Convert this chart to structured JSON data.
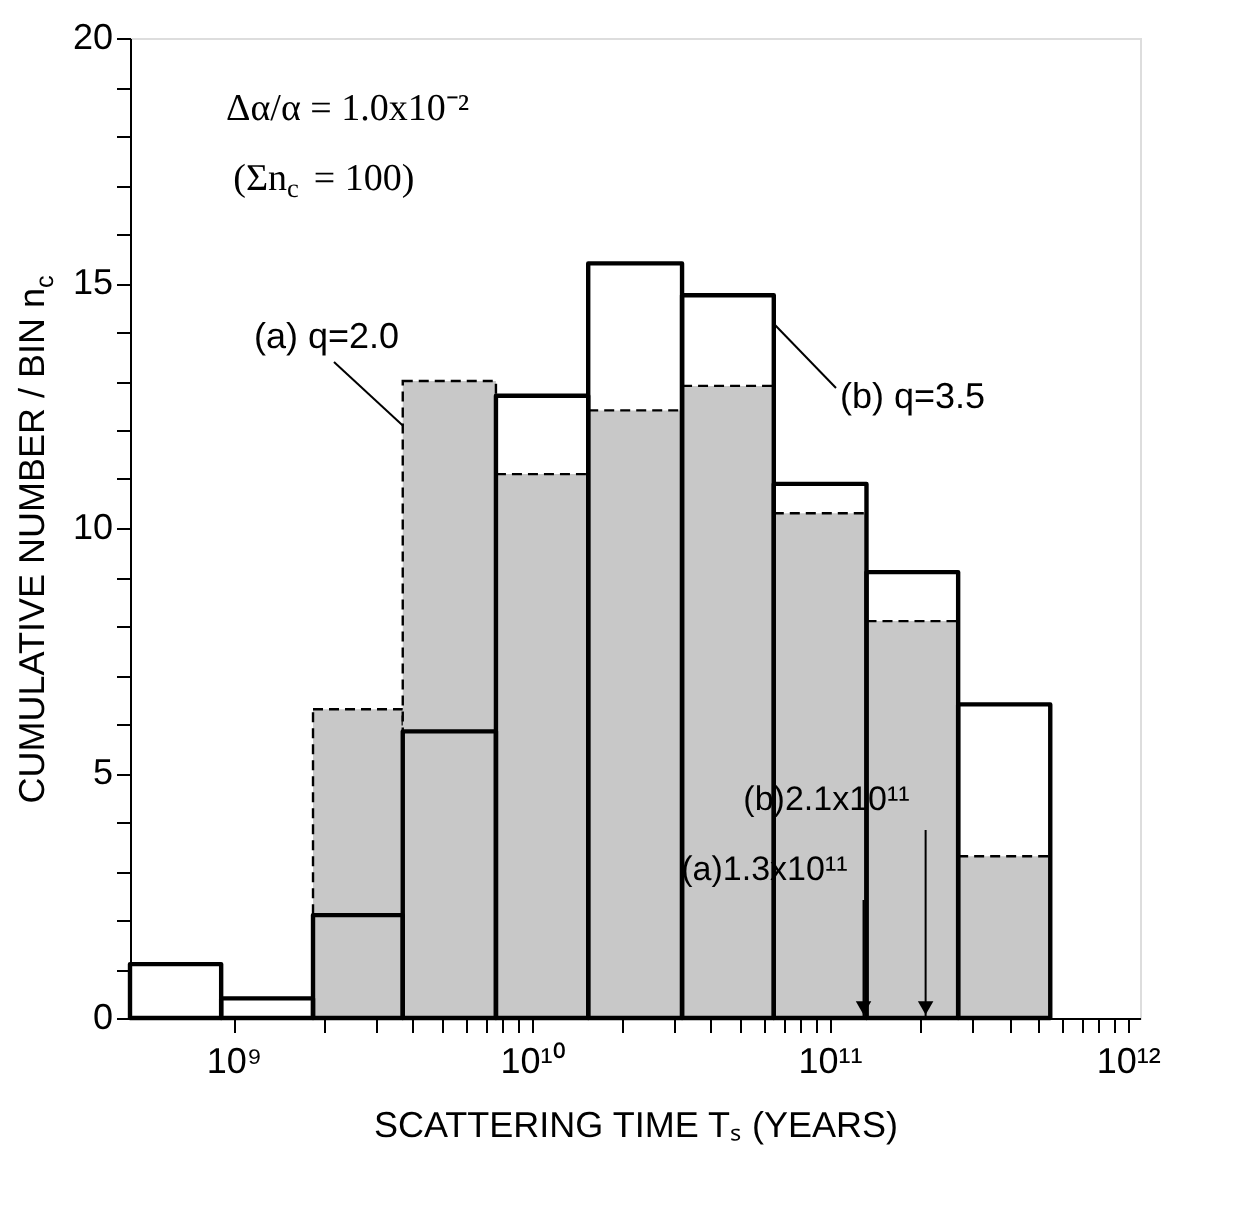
{
  "chart_data": {
    "type": "histogram",
    "xlabel": "SCATTERING TIME  Tₛ (YEARS)",
    "ylabel": "CUMULATIVE NUMBER / BIN n$_{c}$",
    "bins": [
      450000000.0,
      910000000.0,
      1850000000.0,
      3700000000.0,
      7600000000.0,
      15500000000.0,
      32000000000.0,
      65000000000.0,
      133000000000.0,
      270000000000.0,
      550000000000.0
    ],
    "series": [
      {
        "name": "(a) q=2.0",
        "color": "#c8c8c8",
        "line_style": "dashed",
        "values": [
          null,
          null,
          6.3,
          13.0,
          11.1,
          12.4,
          12.9,
          10.3,
          8.1,
          3.3
        ]
      },
      {
        "name": "(b) q=3.5",
        "color": "#000000",
        "line_style": "solid",
        "values": [
          1.1,
          0.4,
          2.1,
          5.85,
          12.7,
          15.4,
          14.75,
          10.9,
          9.1,
          6.4
        ]
      }
    ],
    "xlim": [
      450000000.0,
      1100000000000.0
    ],
    "ylim": [
      0,
      20
    ],
    "log": "x",
    "xticks": [
      {
        "value": 1000000000.0,
        "label": "10⁹"
      },
      {
        "value": 2000000000.0,
        "label": null
      },
      {
        "value": 3000000000.0,
        "label": null
      },
      {
        "value": 4000000000.0,
        "label": null
      },
      {
        "value": 5000000000.0,
        "label": null
      },
      {
        "value": 6000000000.0,
        "label": null
      },
      {
        "value": 7000000000.0,
        "label": null
      },
      {
        "value": 8000000000.0,
        "label": null
      },
      {
        "value": 9000000000.0,
        "label": null
      },
      {
        "value": 10000000000.0,
        "label": "10¹⁰"
      },
      {
        "value": 20000000000.0,
        "label": null
      },
      {
        "value": 30000000000.0,
        "label": null
      },
      {
        "value": 40000000000.0,
        "label": null
      },
      {
        "value": 50000000000.0,
        "label": null
      },
      {
        "value": 60000000000.0,
        "label": null
      },
      {
        "value": 70000000000.0,
        "label": null
      },
      {
        "value": 80000000000.0,
        "label": null
      },
      {
        "value": 90000000000.0,
        "label": null
      },
      {
        "value": 100000000000.0,
        "label": "10¹¹"
      },
      {
        "value": 200000000000.0,
        "label": null
      },
      {
        "value": 300000000000.0,
        "label": null
      },
      {
        "value": 400000000000.0,
        "label": null
      },
      {
        "value": 500000000000.0,
        "label": null
      },
      {
        "value": 600000000000.0,
        "label": null
      },
      {
        "value": 700000000000.0,
        "label": null
      },
      {
        "value": 800000000000.0,
        "label": null
      },
      {
        "value": 900000000000.0,
        "label": null
      },
      {
        "value": 1000000000000.0,
        "label": "10¹²"
      }
    ],
    "yticks": [
      0,
      {
        "value": 1,
        "label": null
      },
      {
        "value": 2,
        "label": null
      },
      {
        "value": 3,
        "label": null
      },
      {
        "value": 4,
        "label": null
      },
      5,
      {
        "value": 6,
        "label": null
      },
      {
        "value": 7,
        "label": null
      },
      {
        "value": 8,
        "label": null
      },
      {
        "value": 9,
        "label": null
      },
      10,
      {
        "value": 11,
        "label": null
      },
      {
        "value": 12,
        "label": null
      },
      {
        "value": 13,
        "label": null
      },
      {
        "value": 14,
        "label": null
      },
      15,
      {
        "value": 16,
        "label": null
      },
      {
        "value": 17,
        "label": null
      },
      {
        "value": 18,
        "label": null
      },
      {
        "value": 19,
        "label": null
      },
      20
    ],
    "grid": false,
    "annotations": [
      "Δα/α = 1.0x10⁻²",
      "(Σn$_{c}$ = 100)",
      {
        "text": "(a)1.3x10¹¹",
        "x": 130000000000.0,
        "y": 0
      },
      {
        "text": "(b)2.1x10¹¹",
        "x": 210000000000.0,
        "y": 0
      }
    ]
  }
}
